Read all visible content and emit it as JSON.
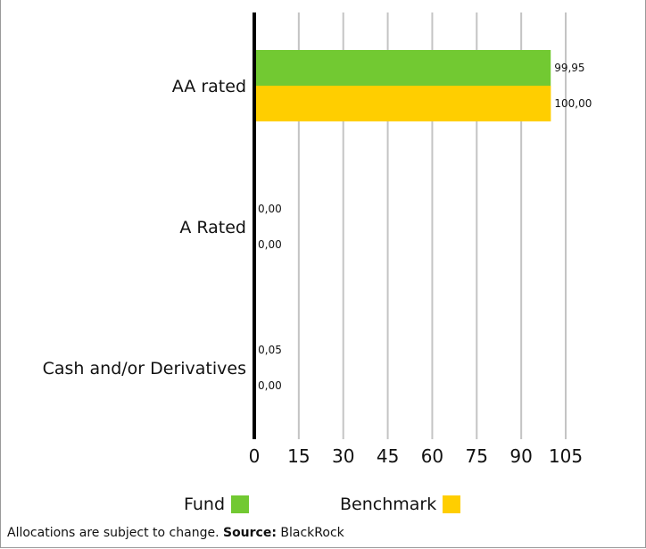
{
  "chart_data": {
    "type": "bar",
    "orientation": "horizontal",
    "categories": [
      "AA rated",
      "A Rated",
      "Cash and/or Derivatives"
    ],
    "series": [
      {
        "name": "Fund",
        "color": "#72c932",
        "values": [
          99.95,
          0.0,
          0.05
        ],
        "labels": [
          "99,95",
          "0,00",
          "0,05"
        ]
      },
      {
        "name": "Benchmark",
        "color": "#ffce00",
        "values": [
          100.0,
          0.0,
          0.0
        ],
        "labels": [
          "100,00",
          "0,00",
          "0,00"
        ]
      }
    ],
    "xlim": [
      0,
      105
    ],
    "x_ticks": [
      0,
      15,
      30,
      45,
      60,
      75,
      90,
      105
    ],
    "x_tick_labels": [
      "0",
      "15",
      "30",
      "45",
      "60",
      "75",
      "90",
      "105"
    ],
    "grid": "vertical",
    "legend_position": "bottom"
  },
  "footnote": {
    "text": "Allocations are subject to change.",
    "source_label": "Source:",
    "source_value": "BlackRock"
  }
}
